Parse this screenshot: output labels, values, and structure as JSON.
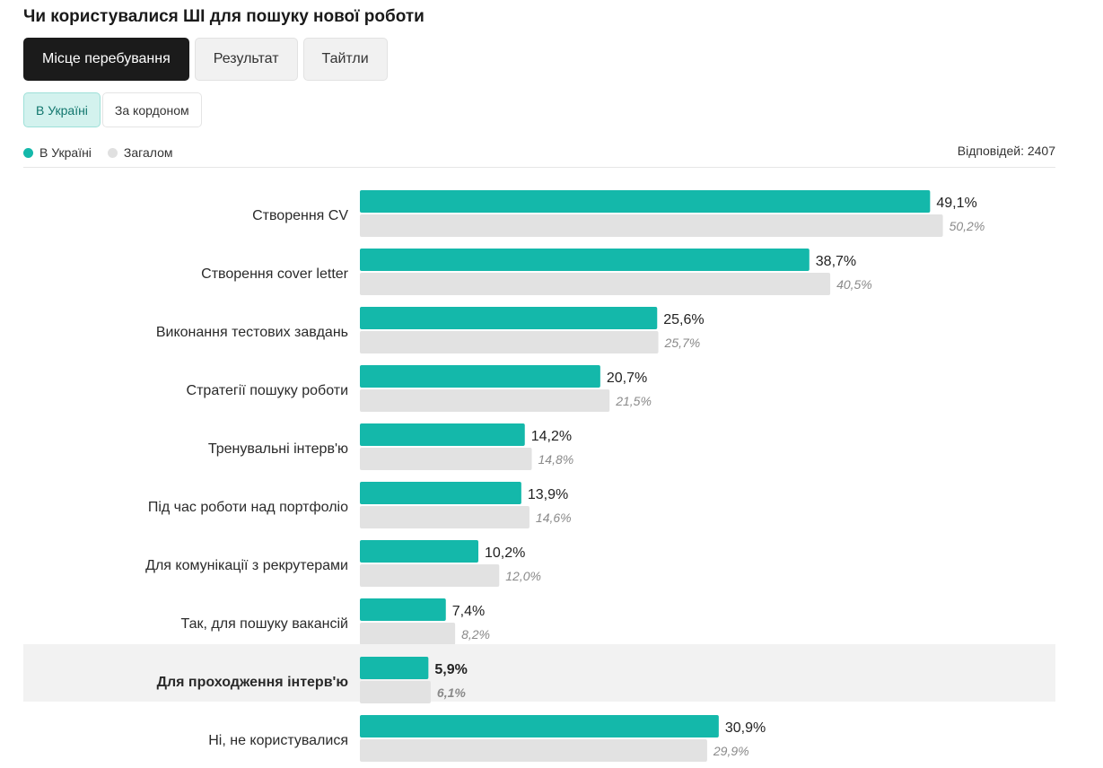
{
  "title": "Чи користувалися ШІ для пошуку нової роботи",
  "tabs": [
    {
      "label": "Місце перебування",
      "active": true
    },
    {
      "label": "Результат",
      "active": false
    },
    {
      "label": "Тайтли",
      "active": false
    }
  ],
  "subtabs": [
    {
      "label": "В Україні",
      "active": true
    },
    {
      "label": "За кордоном",
      "active": false
    }
  ],
  "legend": [
    {
      "label": "В Україні",
      "color": "#14b8aa"
    },
    {
      "label": "Загалом",
      "color": "#e0e0e0"
    }
  ],
  "responses": "Відповідей: 2407",
  "colors": {
    "primary": "#14b8aa",
    "secondary": "#e2e2e2",
    "highlight_row": "#f2f2f2"
  },
  "chart_data": {
    "type": "bar",
    "orientation": "horizontal",
    "categories": [
      "Створення CV",
      "Створення cover letter",
      "Виконання тестових завдань",
      "Стратегії пошуку роботи",
      "Тренувальні інтерв'ю",
      "Під час роботи над портфоліо",
      "Для комунікації з рекрутерами",
      "Так, для пошуку вакансій",
      "Для проходження інтерв'ю",
      "Ні, не користувалися"
    ],
    "highlighted_category": "Для проходження інтерв'ю",
    "series": [
      {
        "name": "В Україні",
        "values": [
          49.1,
          38.7,
          25.6,
          20.7,
          14.2,
          13.9,
          10.2,
          7.4,
          5.9,
          30.9
        ],
        "labels": [
          "49,1%",
          "38,7%",
          "25,6%",
          "20,7%",
          "14,2%",
          "13,9%",
          "10,2%",
          "7,4%",
          "5,9%",
          "30,9%"
        ]
      },
      {
        "name": "Загалом",
        "values": [
          50.2,
          40.5,
          25.7,
          21.5,
          14.8,
          14.6,
          12.0,
          8.2,
          6.1,
          29.9
        ],
        "labels": [
          "50,2%",
          "40,5%",
          "25,7%",
          "21,5%",
          "14,8%",
          "14,6%",
          "12,0%",
          "8,2%",
          "6,1%",
          "29,9%"
        ]
      }
    ]
  }
}
